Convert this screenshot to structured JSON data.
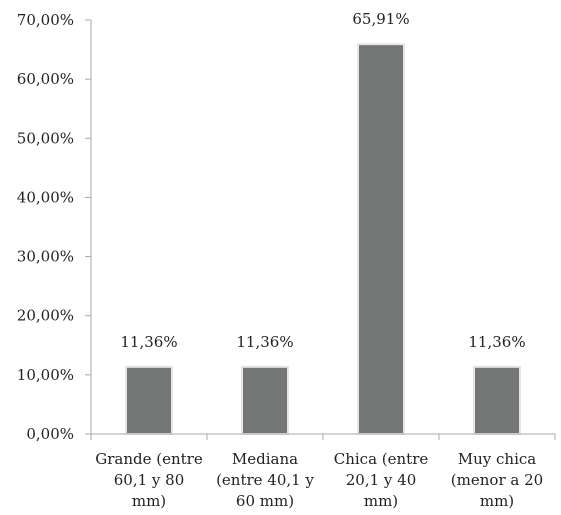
{
  "chart_data": {
    "type": "bar",
    "title": "",
    "xlabel": "",
    "ylabel": "",
    "categories": [
      [
        "Grande (entre",
        "60,1 y 80",
        "mm)"
      ],
      [
        "Mediana",
        "(entre 40,1 y",
        "60 mm)"
      ],
      [
        "Chica (entre",
        "20,1 y 40",
        "mm)"
      ],
      [
        "Muy chica",
        "(menor a 20",
        "mm)"
      ]
    ],
    "values": [
      11.36,
      11.36,
      65.91,
      11.36
    ],
    "data_labels": [
      "11,36%",
      "11,36%",
      "65,91%",
      "11,36%"
    ],
    "ylim": [
      0,
      70
    ],
    "yticks": [
      0,
      10,
      20,
      30,
      40,
      50,
      60,
      70
    ],
    "ytick_labels": [
      "0,00%",
      "10,00%",
      "20,00%",
      "30,00%",
      "40,00%",
      "50,00%",
      "60,00%",
      "70,00%"
    ],
    "grid": false,
    "legend": "none",
    "colors": {
      "bar": "#747676",
      "bar_edge": "#e6e6e6",
      "axis": "#a8a8a8",
      "text": "#222222"
    }
  }
}
